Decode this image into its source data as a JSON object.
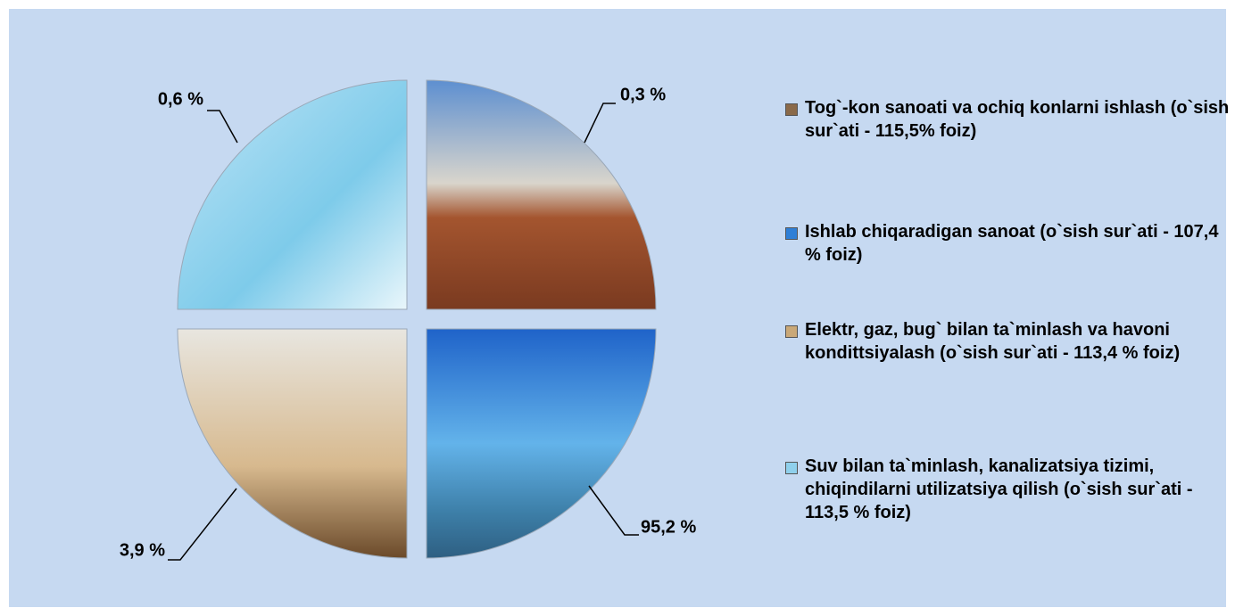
{
  "chart_data": {
    "type": "pie",
    "categories": [
      "Tog`-kon sanoati va ochiq konlarni ishlash (o`sish sur`ati - 115,5% foiz)",
      "Ishlab chiqaradigan sanoat (o`sish sur`ati - 107,4 % foiz)",
      "Elektr, gaz, bug` bilan ta`minlash va havoni kondittsiyalash (o`sish sur`ati - 113,4 % foiz)",
      "Suv bilan ta`minlash, kanalizatsiya tizimi, chiqindilarni utilizatsiya qilish (o`sish sur`ati - 113,5 % foiz)"
    ],
    "values": [
      0.3,
      95.2,
      3.9,
      0.6
    ],
    "value_labels": [
      "0,3 %",
      "95,2 %",
      "3,9 %",
      "0,6 %"
    ],
    "colors": [
      "#8a6a4a",
      "#2f7fd6",
      "#c9a878",
      "#8fd0ec"
    ]
  }
}
